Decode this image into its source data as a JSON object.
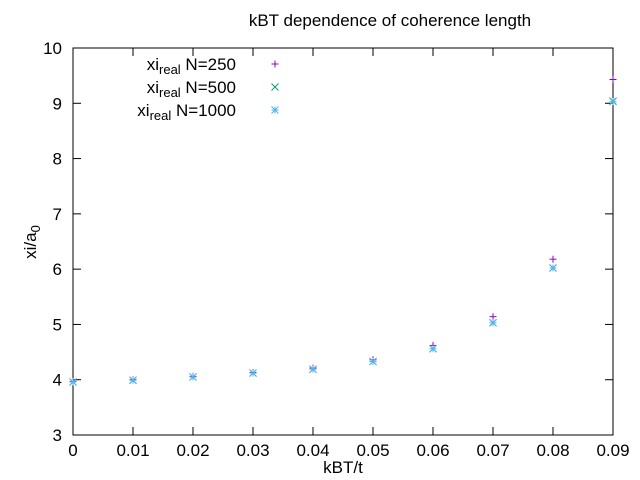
{
  "chart_data": {
    "type": "scatter",
    "title": "kBT dependence of coherence length",
    "xlabel": "kBT/t",
    "ylabel": {
      "main": "xi/a",
      "sub": "0"
    },
    "xlim": [
      0,
      0.09
    ],
    "ylim": [
      3,
      10
    ],
    "xticks": [
      "0",
      "0.01",
      "0.02",
      "0.03",
      "0.04",
      "0.05",
      "0.06",
      "0.07",
      "0.08",
      "0.09"
    ],
    "yticks": [
      "3",
      "4",
      "5",
      "6",
      "7",
      "8",
      "9",
      "10"
    ],
    "grid": false,
    "legend_position": "top-left",
    "series": [
      {
        "name": {
          "main": "xi",
          "sub": "real",
          "rest": " N=250"
        },
        "marker": "plus",
        "color": "#9400d3",
        "x": [
          0,
          0.01,
          0.02,
          0.03,
          0.04,
          0.05,
          0.06,
          0.07,
          0.08,
          0.09
        ],
        "y": [
          3.97,
          4.0,
          4.06,
          4.13,
          4.21,
          4.36,
          4.62,
          5.14,
          6.18,
          9.43
        ]
      },
      {
        "name": {
          "main": "xi",
          "sub": "real",
          "rest": " N=500"
        },
        "marker": "cross",
        "color": "#009e73",
        "x": [
          0,
          0.01,
          0.02,
          0.03,
          0.04,
          0.05,
          0.06,
          0.07,
          0.08,
          0.09
        ],
        "y": [
          3.96,
          3.99,
          4.05,
          4.12,
          4.19,
          4.33,
          4.56,
          5.03,
          6.02,
          9.04
        ]
      },
      {
        "name": {
          "main": "xi",
          "sub": "real",
          "rest": " N=1000"
        },
        "marker": "star",
        "color": "#56b4e9",
        "x": [
          0,
          0.01,
          0.02,
          0.03,
          0.04,
          0.05,
          0.06,
          0.07,
          0.08,
          0.09
        ],
        "y": [
          3.96,
          3.99,
          4.05,
          4.12,
          4.19,
          4.33,
          4.56,
          5.03,
          6.02,
          9.03
        ]
      }
    ]
  }
}
